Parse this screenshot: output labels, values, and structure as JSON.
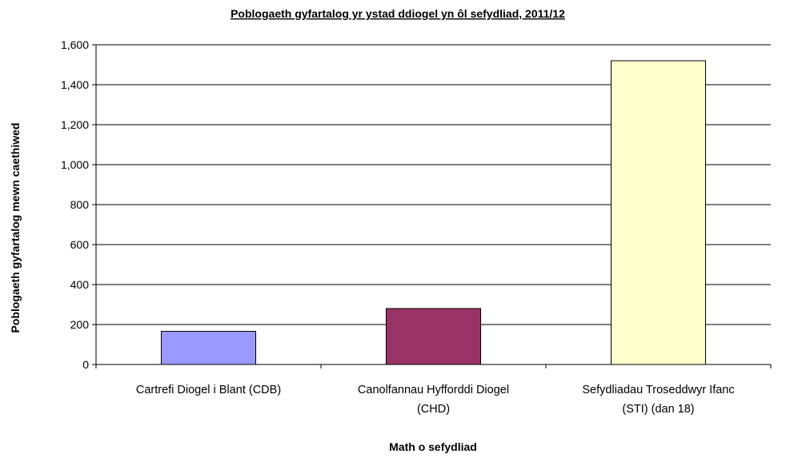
{
  "chart_data": {
    "type": "bar",
    "title": "Poblogaeth gyfartalog yr ystad ddiogel yn ôl sefydliad, 2011/12",
    "xlabel": "Math o sefydliad",
    "ylabel": "Poblogaeth gyfartalog mewn caethiwed",
    "categories": [
      [
        "Cartrefi Diogel i Blant (CDB)"
      ],
      [
        "Canolfannau Hyfforddi Diogel",
        "(CHD)"
      ],
      [
        "Sefydliadau Troseddwyr Ifanc",
        "(STI) (dan 18)"
      ]
    ],
    "values": [
      166,
      280,
      1520
    ],
    "colors": [
      "#9999ff",
      "#993366",
      "#ffffcc"
    ],
    "ylim": [
      0,
      1600
    ],
    "yticks": [
      0,
      200,
      400,
      600,
      800,
      1000,
      1200,
      1400,
      1600
    ],
    "ytick_labels": [
      "0",
      "200",
      "400",
      "600",
      "800",
      "1,000",
      "1,200",
      "1,400",
      "1,600"
    ],
    "grid": true,
    "legend": "none"
  }
}
